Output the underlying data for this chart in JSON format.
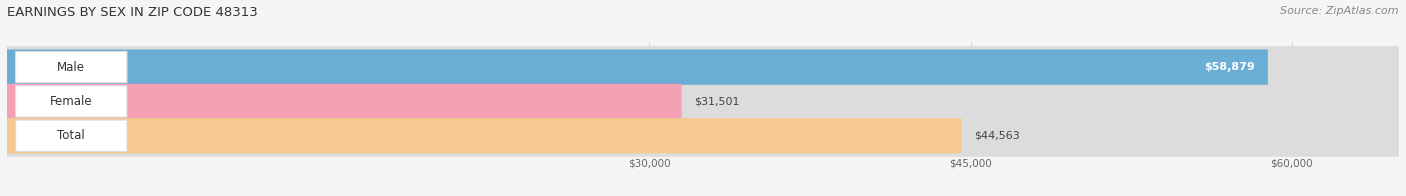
{
  "title": "EARNINGS BY SEX IN ZIP CODE 48313",
  "source": "Source: ZipAtlas.com",
  "categories": [
    "Male",
    "Female",
    "Total"
  ],
  "values": [
    58879,
    31501,
    44563
  ],
  "bar_colors": [
    "#6aaed6",
    "#f4a0b5",
    "#f5c990"
  ],
  "bar_bg_color": "#dcdcdc",
  "label_bg_color": "#ffffff",
  "value_labels": [
    "$58,879",
    "$31,501",
    "$44,563"
  ],
  "value_inside": [
    true,
    false,
    false
  ],
  "x_ticks": [
    30000,
    45000,
    60000
  ],
  "x_tick_labels": [
    "$30,000",
    "$45,000",
    "$60,000"
  ],
  "x_min": 0,
  "x_max": 65000,
  "data_min": 0,
  "data_max": 65000,
  "title_fontsize": 9.5,
  "source_fontsize": 8,
  "bar_label_fontsize": 8.5,
  "value_fontsize": 8,
  "background_color": "#f5f5f5"
}
